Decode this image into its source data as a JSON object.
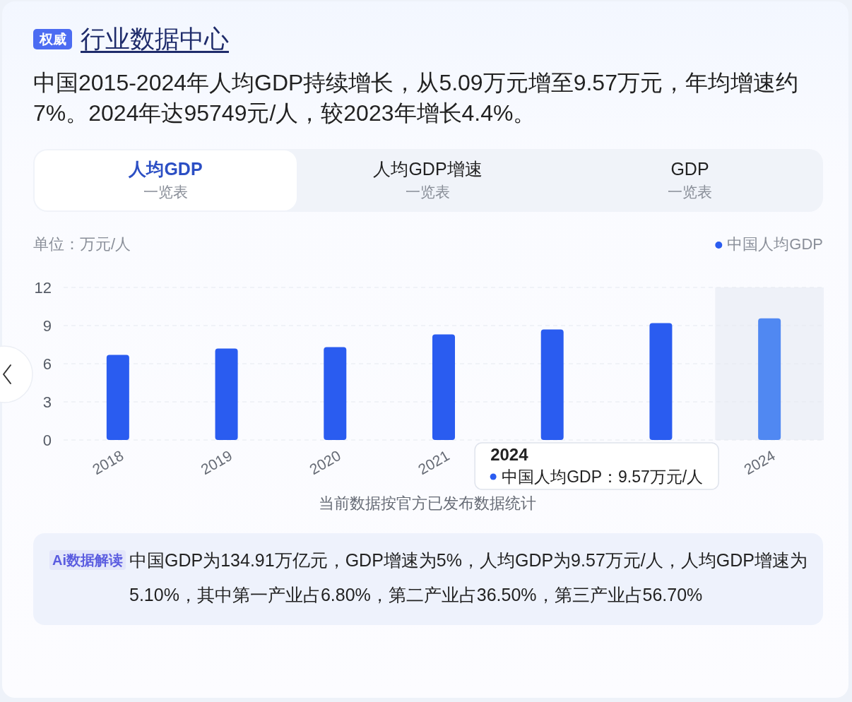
{
  "chart_data": {
    "type": "bar",
    "title": "行业数据中心",
    "subtitle": "中国2015-2024年人均GDP持续增长，从5.09万元增至9.57万元，年均增速约7%。2024年达95749元/人，较2023年增长4.4%。",
    "ylabel": "单位：万元/人",
    "categories": [
      "2018",
      "2019",
      "2020",
      "2021",
      null,
      null,
      "2024"
    ],
    "series": [
      {
        "name": "中国人均GDP",
        "color": "#2a5cf0",
        "colors": [
          "#2a5cf0",
          "#2a5cf0",
          "#2a5cf0",
          "#2a5cf0",
          "#2a5cf0",
          "#2a5cf0",
          "#5088f2"
        ],
        "values": [
          6.7,
          7.2,
          7.3,
          8.3,
          8.7,
          9.2,
          9.57
        ]
      }
    ],
    "ylim": [
      0,
      12
    ],
    "yticks": [
      0,
      3,
      6,
      9,
      12
    ],
    "grid": "y",
    "legend": "top right",
    "bands": [
      {
        "axis": "x",
        "from": "2024",
        "to": "2024",
        "color": "#eef1f8"
      }
    ],
    "annotations": [
      "权威",
      "人均GDP",
      "一览表",
      "人均GDP增速",
      "一览表",
      "GDP",
      "一览表",
      "2024",
      "中国人均GDP：9.57万元/人",
      "当前数据按官方已发布数据统计",
      "Ai数据解读",
      "中国GDP为134.91万亿元，GDP增速为5%，人均GDP为9.57万元/人，人均GDP增速为5.10%，其中第一产业占6.80%，第二产业占36.50%，第三产业占56.70%"
    ]
  }
}
